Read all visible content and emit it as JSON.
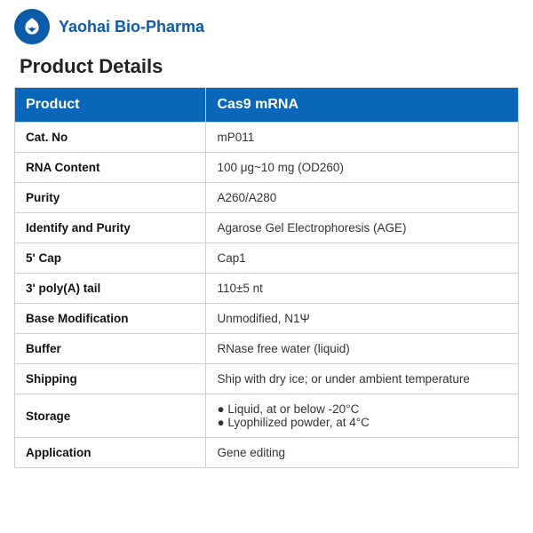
{
  "brand": {
    "company_name": "Yaohai Bio-Pharma",
    "brand_color": "#0a5ca8",
    "header_bg_color": "#0a66b8",
    "header_text_color": "#ffffff",
    "border_color": "#cfcfcf"
  },
  "section_title": "Product Details",
  "table": {
    "header": {
      "col1": "Product",
      "col2": "Cas9 mRNA"
    },
    "rows": [
      {
        "label": "Cat. No",
        "value": "mP011"
      },
      {
        "label": "RNA Content",
        "value": "100 μg~10 mg (OD260)"
      },
      {
        "label": "Purity",
        "value": "A260/A280"
      },
      {
        "label": "Identify and Purity",
        "value": "Agarose Gel Electrophoresis (AGE)"
      },
      {
        "label": "5' Cap",
        "value": "Cap1"
      },
      {
        "label": "3' poly(A) tail",
        "value": "110±5 nt"
      },
      {
        "label": "Base Modification",
        "value": "Unmodified, N1Ψ"
      },
      {
        "label": "Buffer",
        "value": "RNase free water (liquid)"
      },
      {
        "label": "Shipping",
        "value": "Ship with dry ice; or under ambient temperature"
      },
      {
        "label": "Storage",
        "bullets": [
          "Liquid, at or below -20°C",
          "Lyophilized powder, at 4°C"
        ]
      },
      {
        "label": "Application",
        "value": "Gene editing"
      }
    ]
  }
}
